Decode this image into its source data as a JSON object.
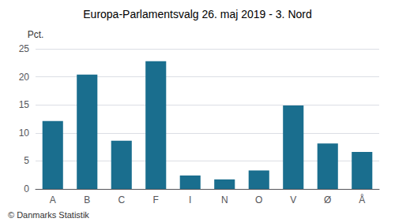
{
  "chart_data": {
    "type": "bar",
    "title": "Europa-Parlamentsvalg 26. maj 2019 - 3. Nord",
    "categories": [
      "A",
      "B",
      "C",
      "F",
      "I",
      "N",
      "O",
      "V",
      "Ø",
      "Å"
    ],
    "values": [
      12.1,
      20.4,
      8.6,
      22.8,
      2.4,
      1.7,
      3.3,
      14.9,
      8.1,
      6.6
    ],
    "color": "#1a6e8e",
    "ylabel": "Pct.",
    "annotations": [
      "© Danmarks Statistik"
    ],
    "ylim": [
      0,
      25
    ],
    "yticks": [
      0,
      5,
      10,
      15,
      20,
      25
    ],
    "grid": true
  }
}
